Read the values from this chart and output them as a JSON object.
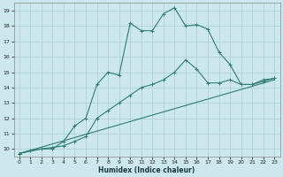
{
  "xlabel": "Humidex (Indice chaleur)",
  "bg_color": "#cce8ec",
  "grid_color": "#b0d0d8",
  "line_color": "#2e7d6e",
  "xlim": [
    -0.5,
    23.5
  ],
  "ylim": [
    9.5,
    19.5
  ],
  "xticks": [
    0,
    1,
    2,
    3,
    4,
    5,
    6,
    7,
    8,
    9,
    10,
    11,
    12,
    13,
    14,
    15,
    16,
    17,
    18,
    19,
    20,
    21,
    22,
    23
  ],
  "yticks": [
    10,
    11,
    12,
    13,
    14,
    15,
    16,
    17,
    18,
    19
  ],
  "line1_x": [
    0,
    1,
    2,
    3,
    4,
    5,
    6,
    7,
    8,
    9,
    10,
    11,
    12,
    13,
    14,
    15,
    16,
    17,
    18,
    19,
    20,
    21,
    22,
    23
  ],
  "line1_y": [
    9.7,
    9.9,
    10.0,
    10.0,
    10.5,
    11.5,
    12.0,
    14.2,
    15.0,
    14.8,
    18.2,
    17.7,
    17.7,
    18.8,
    19.2,
    18.0,
    18.1,
    17.8,
    16.3,
    15.5,
    14.2,
    14.2,
    14.5,
    14.6
  ],
  "line2_x": [
    0,
    2,
    3,
    4,
    5,
    6,
    7,
    8,
    9,
    10,
    11,
    12,
    13,
    14,
    15,
    16,
    17,
    18,
    19,
    20,
    21,
    22,
    23
  ],
  "line2_y": [
    9.7,
    10.0,
    10.1,
    10.2,
    10.5,
    10.8,
    12.0,
    12.5,
    13.0,
    13.5,
    14.0,
    14.2,
    14.5,
    15.0,
    15.8,
    15.2,
    14.3,
    14.3,
    14.5,
    14.2,
    14.2,
    14.4,
    14.6
  ],
  "line3_x": [
    0,
    23
  ],
  "line3_y": [
    9.7,
    14.5
  ]
}
